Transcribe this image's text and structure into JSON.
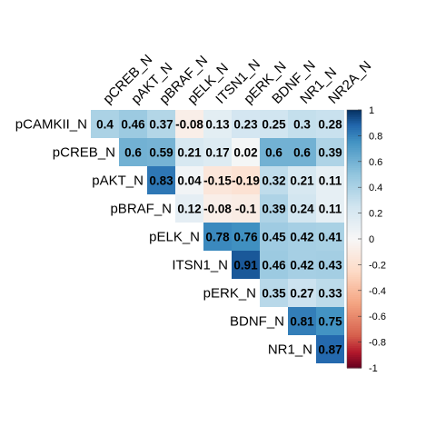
{
  "chart_data": {
    "type": "heatmap",
    "variant": "upper-triangular correlation matrix",
    "title": "",
    "xlabel": "",
    "ylabel": "",
    "row_labels": [
      "pCAMKII_N",
      "pCREB_N",
      "pAKT_N",
      "pBRAF_N",
      "pELK_N",
      "ITSN1_N",
      "pERK_N",
      "BDNF_N",
      "NR1_N"
    ],
    "col_labels": [
      "pCREB_N",
      "pAKT_N",
      "pBRAF_N",
      "pELK_N",
      "ITSN1_N",
      "pERK_N",
      "BDNF_N",
      "NR1_N",
      "NR2A_N"
    ],
    "row_label_text": [
      "pCAMKII_N",
      "pCREB_N",
      "pAKT_N",
      "pBRAF_N",
      "pELK_N",
      "ITSN1_N",
      "pERK_N",
      "BDNF_N",
      "NR1_N"
    ],
    "cell_text": [
      [
        "0.4",
        "0.46",
        "0.37",
        "-0.08",
        "0.13",
        "0.23",
        "0.25",
        "0.3",
        "0.28"
      ],
      [
        null,
        "0.6",
        "0.59",
        "0.21",
        "0.17",
        "0.02",
        "0.6",
        "0.6",
        "0.39"
      ],
      [
        null,
        null,
        "0.83",
        "0.04",
        "-0.15",
        "-0.19",
        "0.32",
        "0.21",
        "0.11"
      ],
      [
        null,
        null,
        null,
        "0.12",
        "-0.08",
        "-0.1",
        "0.39",
        "0.24",
        "0.11"
      ],
      [
        null,
        null,
        null,
        null,
        "0.78",
        "0.76",
        "0.45",
        "0.42",
        "0.41"
      ],
      [
        null,
        null,
        null,
        null,
        null,
        "0.91",
        "0.46",
        "0.42",
        "0.43"
      ],
      [
        null,
        null,
        null,
        null,
        null,
        null,
        "0.35",
        "0.27",
        "0.33"
      ],
      [
        null,
        null,
        null,
        null,
        null,
        null,
        null,
        "0.81",
        "0.75"
      ],
      [
        null,
        null,
        null,
        null,
        null,
        null,
        null,
        null,
        "0.87"
      ]
    ],
    "color_scale": {
      "range": [
        -1,
        1
      ],
      "ticks": [
        1,
        0.8,
        0.6,
        0.4,
        0.2,
        0,
        -0.2,
        -0.4,
        -0.6,
        -0.8,
        -1
      ],
      "tick_labels": [
        "1",
        "0.8",
        "0.6",
        "0.4",
        "0.2",
        "0",
        "-0.2",
        "-0.4",
        "-0.6",
        "-0.8",
        "-1"
      ],
      "colors": {
        "neg": "#67001F",
        "mid": "#F7F7F7",
        "pos": "#053061"
      },
      "legend_position": "right"
    },
    "value_label_color": "#000000"
  }
}
